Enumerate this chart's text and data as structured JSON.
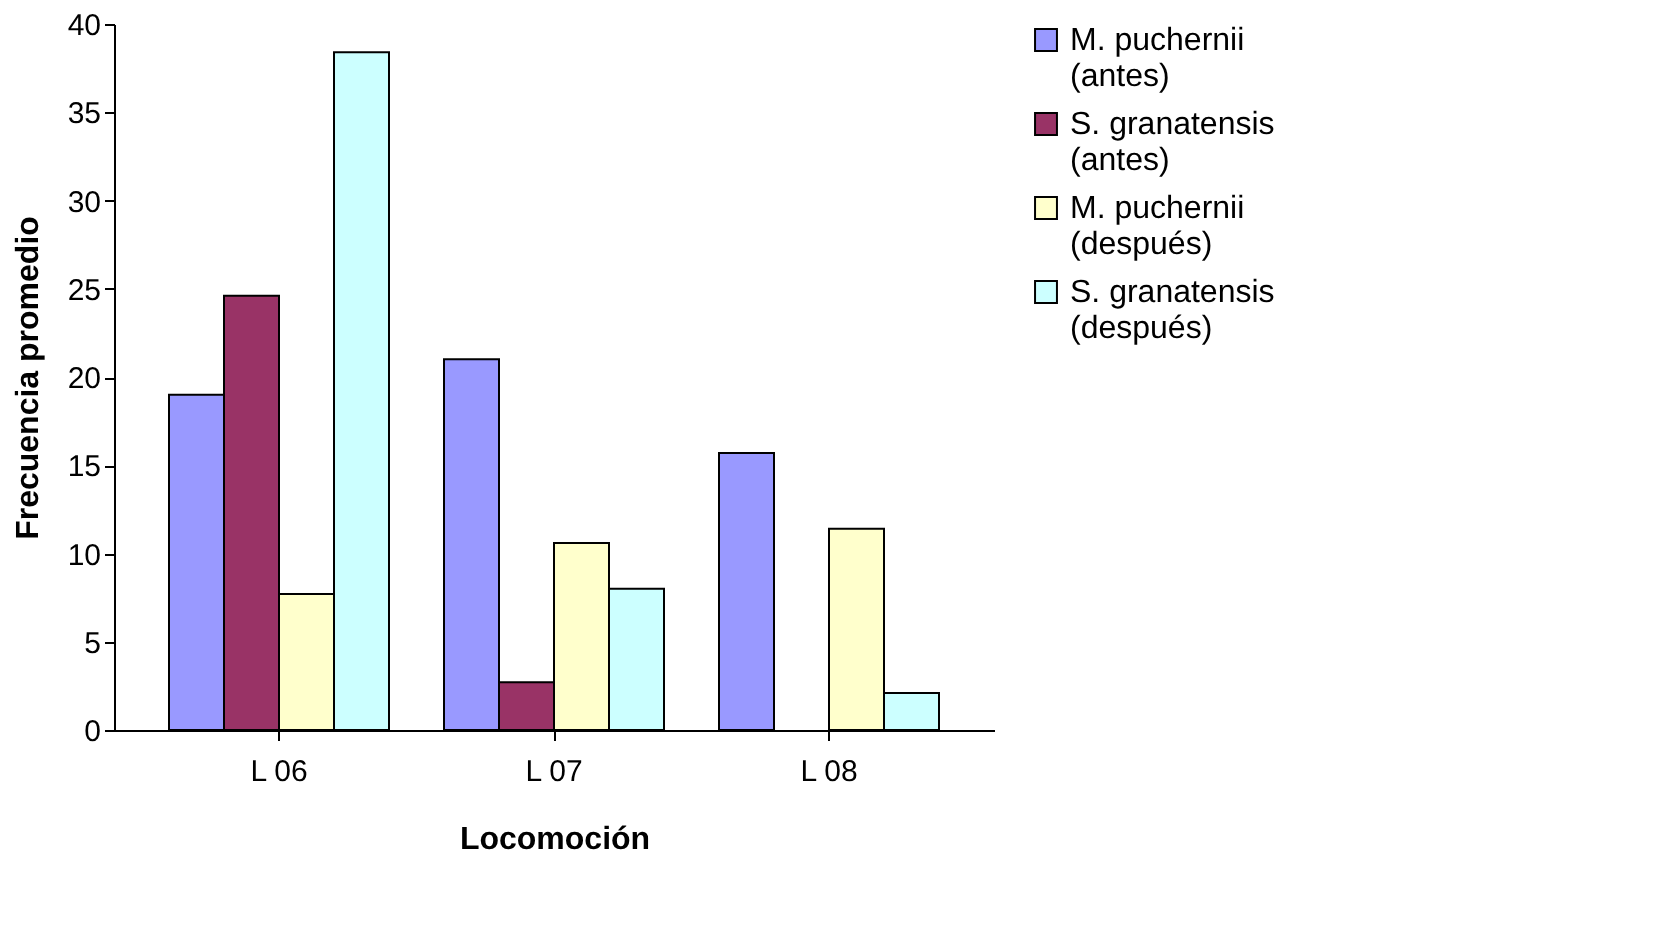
{
  "chart_data": {
    "type": "bar",
    "xlabel": "Locomoción",
    "ylabel": "Frecuencia promedio",
    "categories": [
      "L 06",
      "L 07",
      "L 08"
    ],
    "series": [
      {
        "name": "M. puchernii (antes)",
        "color": "#9999ff",
        "values": [
          19.0,
          21.0,
          15.7
        ]
      },
      {
        "name": "S. granatensis (antes)",
        "color": "#993366",
        "values": [
          24.6,
          2.7,
          null
        ]
      },
      {
        "name": "M. puchernii (después)",
        "color": "#ffffcc",
        "values": [
          7.7,
          10.6,
          11.4
        ]
      },
      {
        "name": "S. granatensis (después)",
        "color": "#ccffff",
        "values": [
          38.4,
          8.0,
          2.1
        ]
      }
    ],
    "ylim": [
      0,
      40
    ],
    "yticks": [
      0,
      5,
      10,
      15,
      20,
      25,
      30,
      35,
      40
    ],
    "grid": false,
    "legend": "right"
  }
}
